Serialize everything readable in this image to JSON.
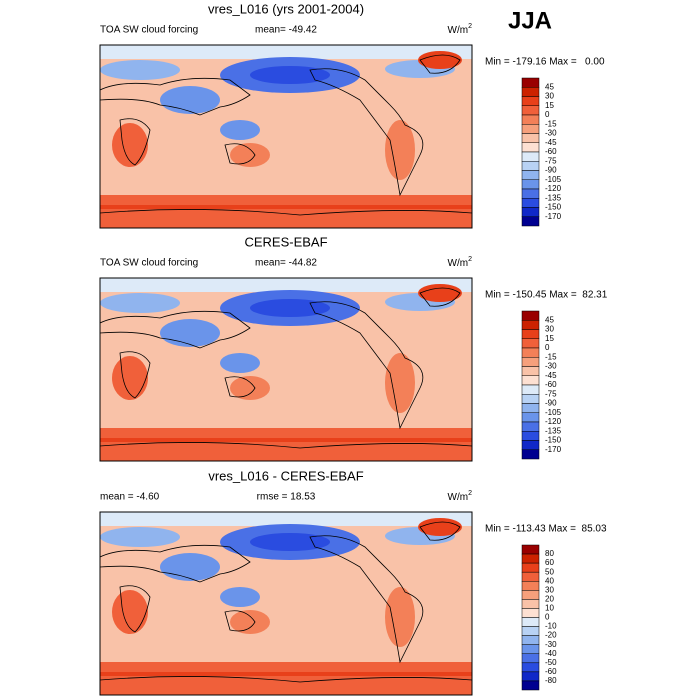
{
  "header": {
    "season": "JJA"
  },
  "panels": [
    {
      "title": "vres_L016 (yrs 2001-2004)",
      "left_label": "TOA SW cloud forcing",
      "center_label": "mean= -49.42",
      "units": "W/m",
      "units_sup": "2",
      "stats": "Min = -179.16 Max =   0.00",
      "colorbar": {
        "labels": [
          "45",
          "30",
          "15",
          "0",
          "-15",
          "-30",
          "-45",
          "-60",
          "-75",
          "-90",
          "-105",
          "-120",
          "-135",
          "-150",
          "-170"
        ],
        "colors": [
          "#990000",
          "#cc2200",
          "#e8401a",
          "#f0603a",
          "#f38058",
          "#f6a07c",
          "#f9c2a8",
          "#fde0d2",
          "#ddeaf8",
          "#b8d2f4",
          "#90b4ee",
          "#6a94ea",
          "#4a70e6",
          "#2a4ce0",
          "#1028c8",
          "#000090"
        ]
      }
    },
    {
      "title": "CERES-EBAF",
      "left_label": "TOA SW cloud forcing",
      "center_label": "mean= -44.82",
      "units": "W/m",
      "units_sup": "2",
      "stats": "Min = -150.45 Max =  82.31",
      "colorbar": {
        "labels": [
          "45",
          "30",
          "15",
          "0",
          "-15",
          "-30",
          "-45",
          "-60",
          "-75",
          "-90",
          "-105",
          "-120",
          "-135",
          "-150",
          "-170"
        ],
        "colors": [
          "#990000",
          "#cc2200",
          "#e8401a",
          "#f0603a",
          "#f38058",
          "#f6a07c",
          "#f9c2a8",
          "#fde0d2",
          "#ddeaf8",
          "#b8d2f4",
          "#90b4ee",
          "#6a94ea",
          "#4a70e6",
          "#2a4ce0",
          "#1028c8",
          "#000090"
        ]
      }
    },
    {
      "title": "vres_L016 - CERES-EBAF",
      "left_label": "mean =  -4.60",
      "center_label": "rmse =  18.53",
      "units": "W/m",
      "units_sup": "2",
      "stats": "Min = -113.43 Max =  85.03",
      "colorbar": {
        "labels": [
          "80",
          "60",
          "50",
          "40",
          "30",
          "20",
          "10",
          "0",
          "-10",
          "-20",
          "-30",
          "-40",
          "-50",
          "-60",
          "-80"
        ],
        "colors": [
          "#990000",
          "#cc2200",
          "#e8401a",
          "#f0603a",
          "#f38058",
          "#f6a07c",
          "#f9c2a8",
          "#fde0d2",
          "#ddeaf8",
          "#b8d2f4",
          "#90b4ee",
          "#6a94ea",
          "#4a70e6",
          "#2a4ce0",
          "#1028c8",
          "#000090"
        ]
      }
    }
  ]
}
